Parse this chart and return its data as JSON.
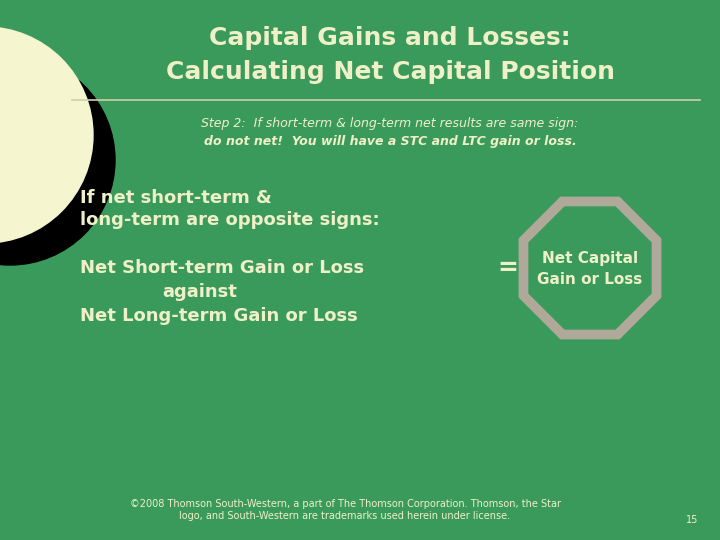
{
  "bg_color": "#3a9a5c",
  "title_line1": "Capital Gains and Losses:",
  "title_line2": "Calculating Net Capital Position",
  "title_color": "#f0f0c8",
  "title_fontsize": 18,
  "separator_color": "#d0d0a8",
  "step2_text_line1": "Step 2:  If short-term & long-term net results are same sign:",
  "step2_text_line2": "do not net!  You will have a STC and LTC gain or loss.",
  "step2_color": "#f0f0c8",
  "step2_fontsize": 9,
  "body_color": "#f0f0c8",
  "body_fontsize": 13,
  "left_text_line1": "If net short-term &",
  "left_text_line2": "long-term are opposite signs:",
  "left_text_line3": "Net Short-term Gain or Loss",
  "left_text_line4": "against",
  "left_text_line5": "Net Long-term Gain or Loss",
  "equals_sign": "=",
  "octagon_label_line1": "Net Capital",
  "octagon_label_line2": "Gain or Loss",
  "octagon_fill": "#3a9a5c",
  "octagon_edge": "#b0a898",
  "octagon_text_color": "#f0f0c8",
  "octagon_fontsize": 11,
  "circle_fill_outer": "#000000",
  "circle_fill_inner": "#f5f5d0",
  "footer_text": "©2008 Thomson South-Western, a part of The Thomson Corporation. Thomson, the Star\nlogo, and South-Western are trademarks used herein under license.",
  "footer_page": "15",
  "footer_color": "#f0f0c8",
  "footer_fontsize": 7
}
